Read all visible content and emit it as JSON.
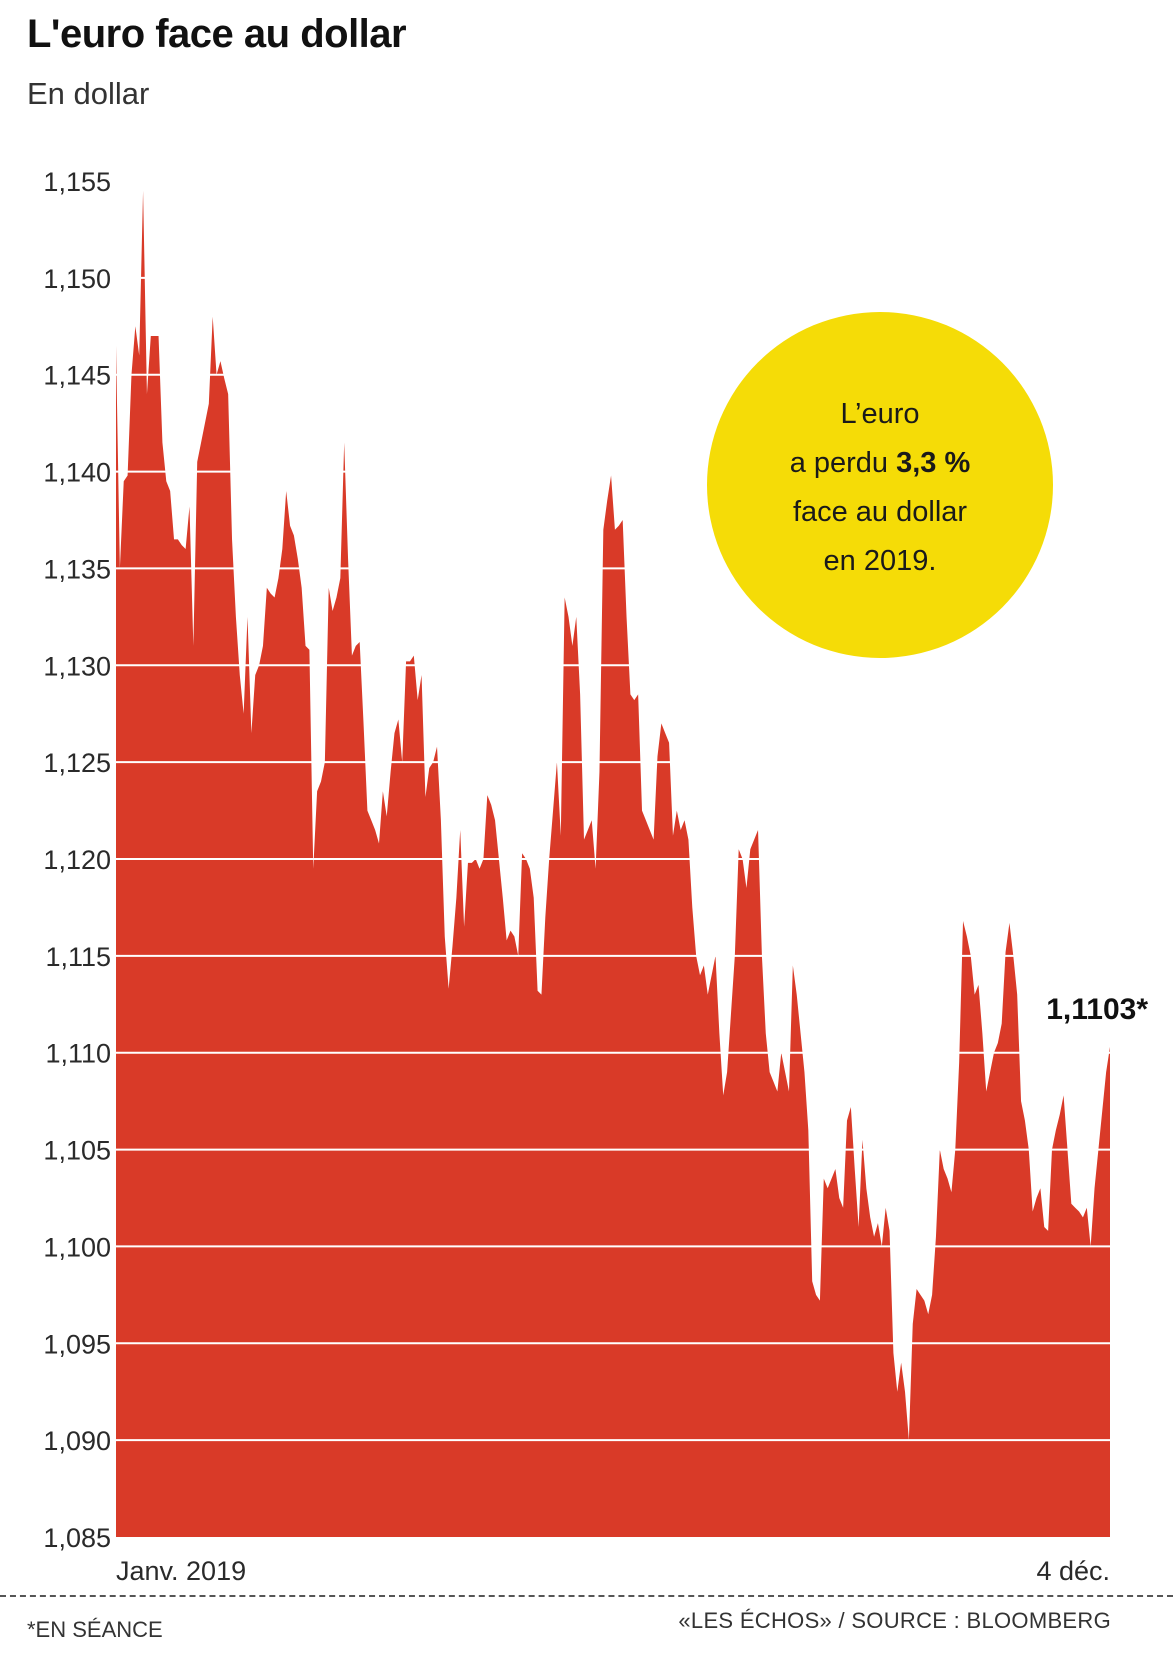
{
  "header": {
    "title": "L'euro face au dollar",
    "subtitle": "En dollar"
  },
  "callout": {
    "line1": "L’euro",
    "line2_prefix": "a perdu ",
    "line2_bold": "3,3 %",
    "line3": "face au dollar",
    "line4": "en 2019.",
    "color": "#f5dc07"
  },
  "last_value_label": "1,1103*",
  "footer": {
    "note": "*EN SÉANCE",
    "source": "«LES ÉCHOS» / SOURCE : BLOOMBERG"
  },
  "colors": {
    "area": "#d93a28",
    "grid": "#ffffff",
    "callout": "#f5dc07"
  },
  "chart_data": {
    "type": "area",
    "title": "L'euro face au dollar",
    "ylabel": "En dollar",
    "ylim": [
      1.085,
      1.155
    ],
    "y_ticks": [
      1.155,
      1.15,
      1.145,
      1.14,
      1.135,
      1.13,
      1.125,
      1.12,
      1.115,
      1.11,
      1.105,
      1.1,
      1.095,
      1.09,
      1.085
    ],
    "y_tick_labels": [
      "1,155",
      "1,150",
      "1,145",
      "1,140",
      "1,135",
      "1,130",
      "1,125",
      "1,120",
      "1,115",
      "1,110",
      "1,105",
      "1,100",
      "1,095",
      "1,090",
      "1,085"
    ],
    "x_labels": [
      "Janv. 2019",
      "4 déc."
    ],
    "x_range": [
      "2019-01-01",
      "2019-12-04"
    ],
    "grid": true,
    "series": [
      {
        "values": [
          1.1465,
          1.135,
          1.1395,
          1.1398,
          1.145,
          1.1475,
          1.146,
          1.1545,
          1.144,
          1.147,
          1.147,
          1.147,
          1.1415,
          1.1395,
          1.139,
          1.1365,
          1.1365,
          1.1362,
          1.136,
          1.1382,
          1.131,
          1.1405,
          1.1415,
          1.1425,
          1.1435,
          1.148,
          1.145,
          1.1457,
          1.1448,
          1.144,
          1.1365,
          1.1325,
          1.1295,
          1.1275,
          1.1325,
          1.1265,
          1.1295,
          1.13,
          1.131,
          1.134,
          1.1337,
          1.1335,
          1.1345,
          1.136,
          1.139,
          1.1372,
          1.1367,
          1.1355,
          1.134,
          1.131,
          1.1308,
          1.1195,
          1.1235,
          1.124,
          1.125,
          1.134,
          1.1328,
          1.1335,
          1.1345,
          1.1415,
          1.1355,
          1.1305,
          1.131,
          1.1312,
          1.127,
          1.1225,
          1.122,
          1.1215,
          1.1208,
          1.1235,
          1.1222,
          1.1245,
          1.1265,
          1.1272,
          1.125,
          1.1302,
          1.1302,
          1.1305,
          1.1282,
          1.1295,
          1.1232,
          1.1247,
          1.125,
          1.1258,
          1.122,
          1.116,
          1.1133,
          1.1155,
          1.118,
          1.1215,
          1.1165,
          1.1198,
          1.1198,
          1.12,
          1.1195,
          1.12,
          1.1233,
          1.1228,
          1.122,
          1.12,
          1.118,
          1.1158,
          1.1163,
          1.116,
          1.115,
          1.1203,
          1.12,
          1.1195,
          1.118,
          1.1132,
          1.113,
          1.117,
          1.12,
          1.1225,
          1.125,
          1.1212,
          1.1335,
          1.1325,
          1.131,
          1.1325,
          1.1285,
          1.121,
          1.1215,
          1.122,
          1.1195,
          1.1245,
          1.137,
          1.1385,
          1.1398,
          1.137,
          1.1372,
          1.1375,
          1.1325,
          1.1285,
          1.1282,
          1.1285,
          1.1225,
          1.122,
          1.1215,
          1.121,
          1.1253,
          1.127,
          1.1265,
          1.126,
          1.1212,
          1.1225,
          1.1215,
          1.122,
          1.121,
          1.1175,
          1.115,
          1.114,
          1.1145,
          1.113,
          1.114,
          1.115,
          1.111,
          1.1078,
          1.109,
          1.112,
          1.115,
          1.1205,
          1.12,
          1.1185,
          1.1205,
          1.121,
          1.1215,
          1.115,
          1.111,
          1.109,
          1.1085,
          1.108,
          1.11,
          1.109,
          1.108,
          1.1145,
          1.113,
          1.111,
          1.109,
          1.106,
          1.0982,
          1.0975,
          1.0972,
          1.1035,
          1.103,
          1.1035,
          1.104,
          1.1025,
          1.102,
          1.1065,
          1.1072,
          1.104,
          1.101,
          1.1055,
          1.103,
          1.1015,
          1.1005,
          1.1012,
          1.1,
          1.102,
          1.1008,
          1.0945,
          1.0925,
          1.094,
          1.0925,
          1.09,
          1.096,
          1.0978,
          1.0975,
          1.0972,
          1.0965,
          1.0975,
          1.1005,
          1.105,
          1.104,
          1.1035,
          1.1028,
          1.105,
          1.1095,
          1.1168,
          1.116,
          1.115,
          1.113,
          1.1135,
          1.111,
          1.108,
          1.109,
          1.11,
          1.1105,
          1.1115,
          1.1152,
          1.1167,
          1.115,
          1.113,
          1.1075,
          1.1065,
          1.105,
          1.1018,
          1.1025,
          1.103,
          1.101,
          1.1008,
          1.105,
          1.106,
          1.1068,
          1.1078,
          1.105,
          1.1022,
          1.102,
          1.1018,
          1.1015,
          1.102,
          1.1,
          1.103,
          1.105,
          1.107,
          1.109,
          1.1103
        ]
      }
    ],
    "last_value": 1.1103
  }
}
